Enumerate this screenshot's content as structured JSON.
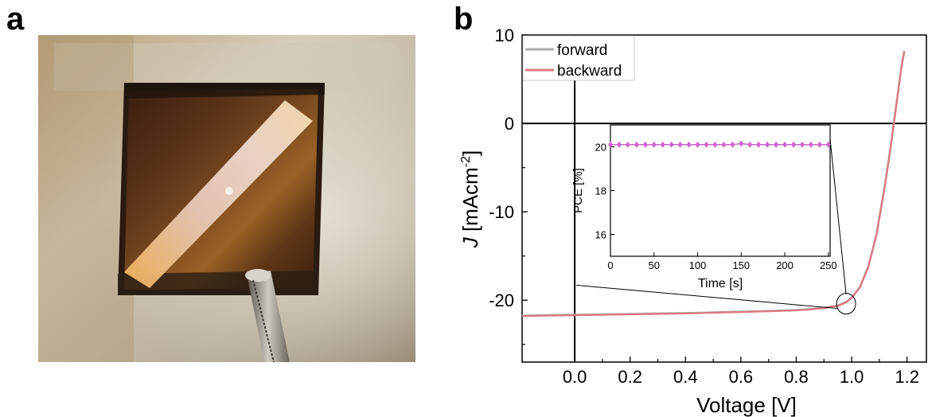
{
  "panels": {
    "a_label": "a",
    "b_label": "b"
  },
  "chart_data": [
    {
      "type": "line",
      "title": "",
      "xlabel": "Voltage [V]",
      "ylabel_italic": "J",
      "ylabel_rest": " [mAcm",
      "ylabel_sup": "-2",
      "ylabel_close": "]",
      "xlim": [
        -0.19,
        1.27
      ],
      "ylim": [
        -27,
        10
      ],
      "xticks": [
        "0.0",
        "0.2",
        "0.4",
        "0.6",
        "0.8",
        "1.0",
        "1.2"
      ],
      "xtick_values": [
        0,
        0.2,
        0.4,
        0.6,
        0.8,
        1.0,
        1.2
      ],
      "yticks": [
        "10",
        "0",
        "-10",
        "-20"
      ],
      "ytick_values": [
        10,
        0,
        -10,
        -20
      ],
      "legend_position": "top-left",
      "series": [
        {
          "name": "forward",
          "color": "#a8a8a8",
          "x": [
            -0.19,
            -0.1,
            0,
            0.1,
            0.2,
            0.3,
            0.4,
            0.5,
            0.6,
            0.7,
            0.8,
            0.85,
            0.9,
            0.95,
            0.98,
            1.0,
            1.03,
            1.06,
            1.09,
            1.12,
            1.14,
            1.16,
            1.18,
            1.19
          ],
          "y": [
            -21.75,
            -21.7,
            -21.65,
            -21.6,
            -21.55,
            -21.5,
            -21.45,
            -21.38,
            -21.3,
            -21.22,
            -21.1,
            -21.0,
            -20.85,
            -20.6,
            -20.2,
            -19.7,
            -18.5,
            -16.2,
            -12.5,
            -7.0,
            -2.8,
            1.8,
            6.5,
            8.2
          ]
        },
        {
          "name": "backward",
          "color": "#e07880",
          "x": [
            -0.19,
            -0.1,
            0,
            0.1,
            0.2,
            0.3,
            0.4,
            0.5,
            0.6,
            0.7,
            0.8,
            0.85,
            0.9,
            0.95,
            0.98,
            1.0,
            1.03,
            1.06,
            1.09,
            1.12,
            1.14,
            1.16,
            1.18,
            1.19
          ],
          "y": [
            -21.8,
            -21.75,
            -21.7,
            -21.65,
            -21.6,
            -21.55,
            -21.5,
            -21.42,
            -21.34,
            -21.26,
            -21.15,
            -21.05,
            -20.9,
            -20.65,
            -20.25,
            -19.75,
            -18.55,
            -16.3,
            -12.6,
            -7.1,
            -2.9,
            1.7,
            6.4,
            8.1
          ]
        }
      ]
    },
    {
      "type": "line",
      "title": "",
      "xlabel": "Time [s]",
      "ylabel": "PCE [%]",
      "xlim": [
        0,
        252
      ],
      "ylim": [
        15,
        21
      ],
      "xticks": [
        "0",
        "50",
        "100",
        "150",
        "200",
        "250"
      ],
      "xtick_values": [
        0,
        50,
        100,
        150,
        200,
        250
      ],
      "yticks": [
        "20",
        "18",
        "16"
      ],
      "ytick_values": [
        20,
        18,
        16
      ],
      "series": [
        {
          "name": "",
          "color": "#cc66cc",
          "x": [
            0,
            10,
            20,
            30,
            40,
            50,
            60,
            70,
            80,
            90,
            100,
            110,
            120,
            130,
            140,
            150,
            160,
            170,
            180,
            190,
            200,
            210,
            220,
            230,
            240,
            250
          ],
          "y": [
            20.1,
            20.1,
            20.1,
            20.1,
            20.1,
            20.1,
            20.1,
            20.1,
            20.1,
            20.1,
            20.1,
            20.1,
            20.1,
            20.1,
            20.1,
            20.15,
            20.1,
            20.1,
            20.1,
            20.1,
            20.1,
            20.1,
            20.1,
            20.1,
            20.1,
            20.1
          ]
        }
      ]
    }
  ]
}
